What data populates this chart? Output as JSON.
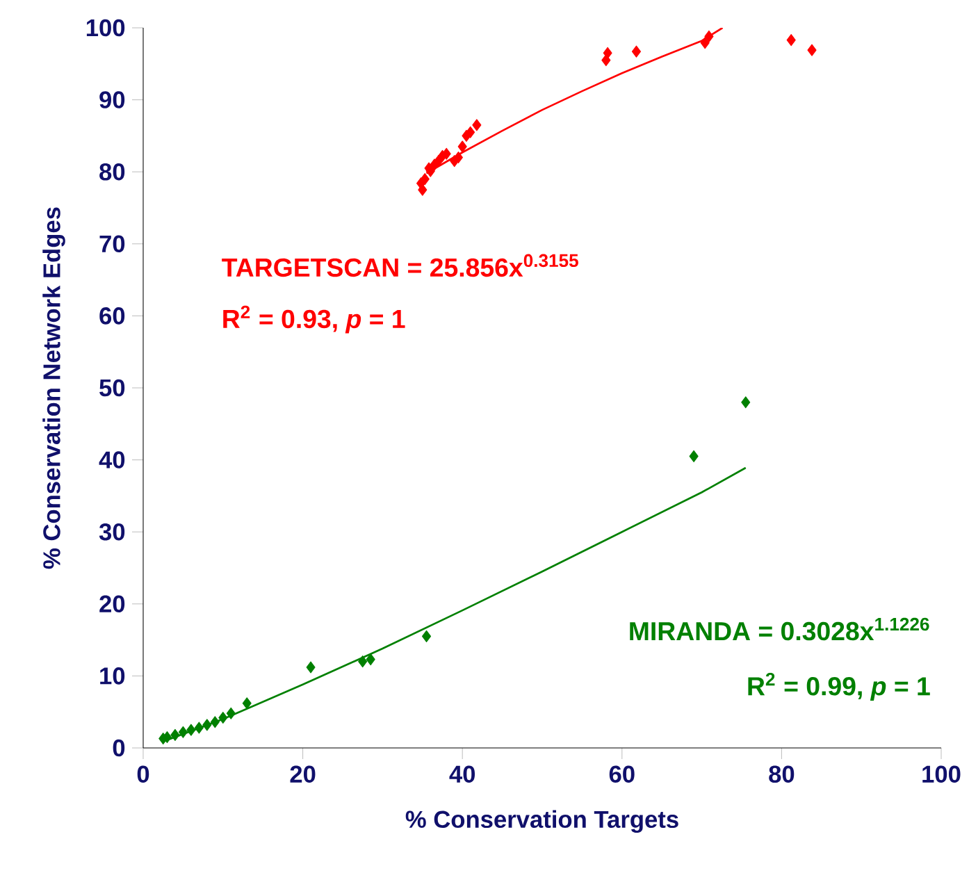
{
  "chart_data": {
    "type": "scatter",
    "xlabel": "% Conservation Targets",
    "ylabel": "% Conservation Network Edges",
    "xlim": [
      0,
      100
    ],
    "ylim": [
      0,
      100
    ],
    "xticks": [
      0,
      20,
      40,
      60,
      80,
      100
    ],
    "yticks": [
      0,
      10,
      20,
      30,
      40,
      50,
      60,
      70,
      80,
      90,
      100
    ],
    "grid": false,
    "series": [
      {
        "color": "#ff0000",
        "marker": "diamond",
        "x": [
          34.8,
          35,
          35.3,
          35.8,
          36,
          36.5,
          37,
          37.5,
          38,
          39,
          39.5,
          40,
          40.5,
          41,
          41.8,
          58,
          58.2,
          61.8,
          70.4,
          70.9,
          81.2,
          83.8
        ],
        "values": [
          78.4,
          77.5,
          79,
          80.5,
          80.1,
          81,
          81.5,
          82.2,
          82.5,
          81.5,
          82,
          83.5,
          85,
          85.5,
          86.5,
          95.5,
          96.5,
          96.7,
          97.9,
          98.8,
          98.3,
          96.9
        ]
      },
      {
        "type": "line",
        "marker": "none",
        "color": "#ff0000",
        "x": [
          35.5,
          40,
          45,
          50,
          55,
          60,
          65,
          70,
          72.6
        ],
        "values": [
          79.8,
          82.7,
          85.7,
          88.6,
          91.2,
          93.7,
          96,
          98.2,
          100
        ]
      },
      {
        "color": "#008000",
        "marker": "diamond",
        "x": [
          2.5,
          3,
          4,
          5,
          6,
          7,
          8,
          9,
          10,
          11,
          13,
          21,
          27.5,
          28.5,
          35.5,
          69,
          75.5
        ],
        "values": [
          1.3,
          1.5,
          1.8,
          2.2,
          2.5,
          2.8,
          3.2,
          3.6,
          4.2,
          4.8,
          6.2,
          11.2,
          12,
          12.3,
          15.5,
          40.5,
          48
        ]
      },
      {
        "type": "line",
        "marker": "none",
        "color": "#008000",
        "x": [
          2.5,
          10,
          20,
          30,
          40,
          50,
          60,
          70,
          75.5
        ],
        "values": [
          0.9,
          4,
          8.8,
          13.8,
          19.1,
          24.5,
          30,
          35.5,
          38.9
        ]
      }
    ],
    "annotations": [
      "TARGETSCAN = 25.856x$^{0.3155}$",
      "R$^{2}$ = 0.93, *p* = 1",
      "MIRANDA = 0.3028x$^{1.1226}$",
      "R$^{2}$ = 0.99, *p* = 1"
    ]
  }
}
